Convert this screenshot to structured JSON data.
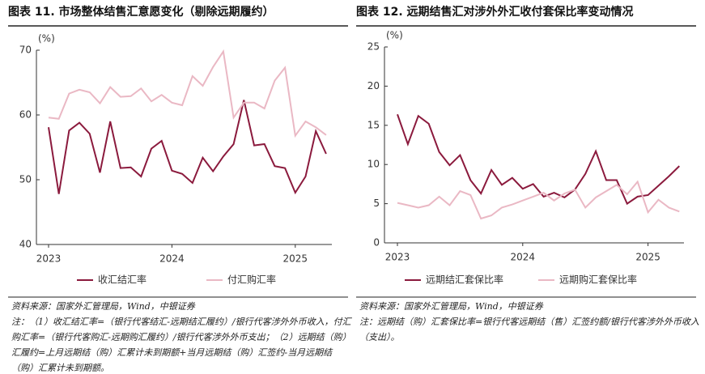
{
  "chart_data": [
    {
      "type": "line",
      "title": "图表 11. 市场整体结售汇意愿变化（剔除远期履约）",
      "y_unit": "(%)",
      "categories": [
        "2023",
        null,
        null,
        null,
        null,
        null,
        null,
        null,
        null,
        null,
        null,
        null,
        "2024",
        null,
        null,
        null,
        null,
        null,
        null,
        null,
        null,
        null,
        null,
        null,
        "2025",
        null,
        null,
        null
      ],
      "series": [
        {
          "name": "收汇结汇率",
          "color": "#8b1a3d",
          "values": [
            58.1,
            47.8,
            57.6,
            58.8,
            57.1,
            51.1,
            59.0,
            51.8,
            51.9,
            50.5,
            54.8,
            56.0,
            51.4,
            50.9,
            49.5,
            53.4,
            51.3,
            53.6,
            55.5,
            62.3,
            55.3,
            55.5,
            52.1,
            51.8,
            48.0,
            50.5,
            57.5,
            54.0
          ]
        },
        {
          "name": "付汇购汇率",
          "color": "#eab8c4",
          "values": [
            59.6,
            59.4,
            63.3,
            63.9,
            63.5,
            61.8,
            64.3,
            62.8,
            62.9,
            64.1,
            62.1,
            63.1,
            61.9,
            61.5,
            66.0,
            64.5,
            67.4,
            69.8,
            59.6,
            61.9,
            61.9,
            61.0,
            65.3,
            67.3,
            56.8,
            59.0,
            58.1,
            56.9
          ]
        }
      ],
      "ylim": [
        40,
        70
      ],
      "yticks": [
        40,
        50,
        60,
        70
      ],
      "source": "资料来源：国家外汇管理局，Wind，中银证券",
      "note": "注：（1）收汇结汇率=（银行代客结汇-远期结汇履约）/银行代客涉外外币收入，付汇购汇率=（银行代客购汇-远期购汇履约）/银行代客涉外外币支出；（2）远期结（购）汇履约=上月远期结（购）汇累计未到期额+当月远期结（购）汇签约-当月远期结（购）汇累计未到期额。"
    },
    {
      "type": "line",
      "title": "图表 12. 远期结售汇对涉外外汇收付套保比率变动情况",
      "y_unit": "(%)",
      "categories": [
        "2023",
        null,
        null,
        null,
        null,
        null,
        null,
        null,
        null,
        null,
        null,
        null,
        "2024",
        null,
        null,
        null,
        null,
        null,
        null,
        null,
        null,
        null,
        null,
        null,
        "2025",
        null,
        null,
        null
      ],
      "series": [
        {
          "name": "远期结汇套保比率",
          "color": "#8b1a3d",
          "values": [
            16.4,
            12.6,
            16.2,
            15.2,
            11.6,
            9.9,
            11.2,
            8.0,
            6.3,
            9.3,
            7.4,
            8.3,
            6.9,
            7.5,
            5.9,
            6.4,
            5.8,
            6.8,
            8.8,
            11.7,
            8.0,
            8.0,
            5.0,
            5.9,
            6.1,
            7.3,
            8.5,
            9.8
          ]
        },
        {
          "name": "远期购汇套保比率",
          "color": "#eab8c4",
          "values": [
            5.1,
            4.8,
            4.5,
            4.8,
            5.9,
            4.8,
            6.6,
            6.1,
            3.1,
            3.5,
            4.5,
            4.9,
            5.4,
            5.9,
            6.4,
            5.4,
            6.3,
            6.8,
            4.5,
            5.8,
            6.6,
            7.4,
            6.2,
            7.8,
            3.9,
            5.5,
            4.5,
            4.0
          ]
        }
      ],
      "ylim": [
        0,
        25
      ],
      "yticks": [
        0,
        5,
        10,
        15,
        20,
        25
      ],
      "source": "资料来源：国家外汇管理局，Wind，中银证券",
      "note": "注：远期结（购）汇套保比率=银行代客远期结（售）汇签约额/银行代客涉外外币收入（支出）。"
    }
  ]
}
